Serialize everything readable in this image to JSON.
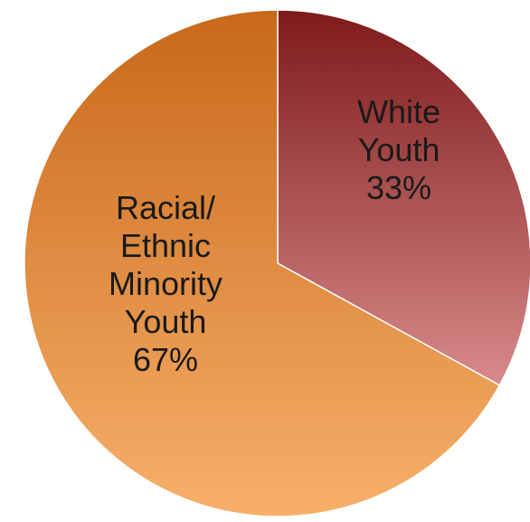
{
  "chart_data": {
    "type": "pie",
    "title": "",
    "legend": "none",
    "start_angle_deg": 0,
    "direction": "clockwise",
    "slices": [
      {
        "label_lines": [
          "White",
          "Youth"
        ],
        "value_label": "33%",
        "value": 33,
        "color_top": "#7e1a1a",
        "color_bottom": "#d88a8a"
      },
      {
        "label_lines": [
          "Racial/",
          "Ethnic",
          "Minority",
          "Youth"
        ],
        "value_label": "67%",
        "value": 67,
        "color_top": "#c8681a",
        "color_bottom": "#f7b06a"
      }
    ]
  }
}
